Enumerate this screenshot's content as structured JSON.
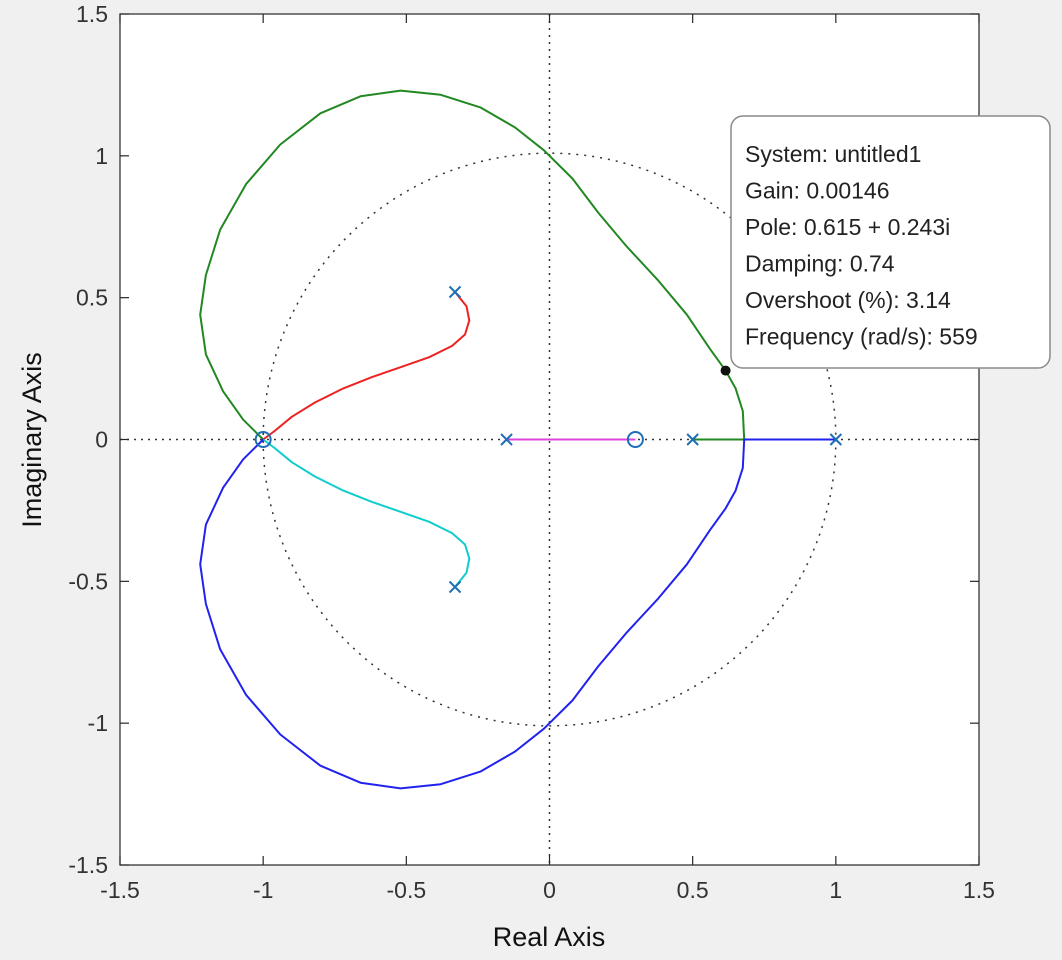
{
  "chart_data": {
    "type": "line",
    "xlabel": "Real Axis",
    "ylabel": "Imaginary Axis",
    "xlim": [
      -1.5,
      1.5
    ],
    "ylim": [
      -1.5,
      1.5
    ],
    "xticks": [
      -1.5,
      -1,
      -0.5,
      0,
      0.5,
      1,
      1.5
    ],
    "xtick_labels": [
      "-1.5",
      "-1",
      "-0.5",
      "0",
      "0.5",
      "1",
      "1.5"
    ],
    "yticks": [
      1.5,
      1,
      0.5,
      0,
      -0.5,
      -1,
      -1.5
    ],
    "ytick_labels": [
      "1.5",
      "1",
      "0.5",
      "0",
      "-0.5",
      "-1",
      "-1.5"
    ],
    "unit_circle": true,
    "grid": false,
    "poles": [
      {
        "x": -0.33,
        "y": 0.52
      },
      {
        "x": -0.33,
        "y": -0.52
      },
      {
        "x": -0.15,
        "y": 0
      },
      {
        "x": 0.5,
        "y": 0
      },
      {
        "x": 1.0,
        "y": 0
      }
    ],
    "zeros": [
      {
        "x": -1.0,
        "y": 0
      },
      {
        "x": 0.3,
        "y": 0
      }
    ],
    "series": [
      {
        "color": "#ee2222",
        "points": [
          [
            -0.33,
            0.52
          ],
          [
            -0.29,
            0.47
          ],
          [
            -0.28,
            0.42
          ],
          [
            -0.295,
            0.37
          ],
          [
            -0.34,
            0.33
          ],
          [
            -0.42,
            0.29
          ],
          [
            -0.52,
            0.255
          ],
          [
            -0.62,
            0.22
          ],
          [
            -0.72,
            0.18
          ],
          [
            -0.82,
            0.13
          ],
          [
            -0.9,
            0.08
          ],
          [
            -0.96,
            0.03
          ],
          [
            -1.0,
            0
          ]
        ]
      },
      {
        "color": "#11cccc",
        "points": [
          [
            -0.33,
            -0.52
          ],
          [
            -0.29,
            -0.47
          ],
          [
            -0.28,
            -0.42
          ],
          [
            -0.295,
            -0.37
          ],
          [
            -0.34,
            -0.33
          ],
          [
            -0.42,
            -0.29
          ],
          [
            -0.52,
            -0.255
          ],
          [
            -0.62,
            -0.22
          ],
          [
            -0.72,
            -0.18
          ],
          [
            -0.82,
            -0.13
          ],
          [
            -0.9,
            -0.08
          ],
          [
            -0.96,
            -0.03
          ],
          [
            -1.0,
            0
          ]
        ]
      },
      {
        "color": "#dd44dd",
        "points": [
          [
            -0.15,
            0
          ],
          [
            0.3,
            0
          ]
        ]
      },
      {
        "color": "#228822",
        "points": [
          [
            0.5,
            0
          ],
          [
            0.68,
            0
          ],
          [
            0.675,
            0.1
          ],
          [
            0.65,
            0.18
          ],
          [
            0.615,
            0.243
          ],
          [
            0.56,
            0.32
          ],
          [
            0.48,
            0.44
          ],
          [
            0.38,
            0.56
          ],
          [
            0.27,
            0.68
          ],
          [
            0.17,
            0.8
          ],
          [
            0.08,
            0.92
          ],
          [
            -0.02,
            1.02
          ],
          [
            -0.12,
            1.1
          ],
          [
            -0.24,
            1.17
          ],
          [
            -0.38,
            1.215
          ],
          [
            -0.52,
            1.23
          ],
          [
            -0.66,
            1.21
          ],
          [
            -0.8,
            1.15
          ],
          [
            -0.94,
            1.04
          ],
          [
            -1.06,
            0.9
          ],
          [
            -1.15,
            0.74
          ],
          [
            -1.2,
            0.58
          ],
          [
            -1.22,
            0.44
          ],
          [
            -1.2,
            0.3
          ],
          [
            -1.14,
            0.17
          ],
          [
            -1.07,
            0.07
          ],
          [
            -1.0,
            0
          ]
        ]
      },
      {
        "color": "#2222ee",
        "points": [
          [
            1.0,
            0
          ],
          [
            0.68,
            0
          ],
          [
            0.675,
            -0.1
          ],
          [
            0.65,
            -0.18
          ],
          [
            0.615,
            -0.243
          ],
          [
            0.56,
            -0.32
          ],
          [
            0.48,
            -0.44
          ],
          [
            0.38,
            -0.56
          ],
          [
            0.27,
            -0.68
          ],
          [
            0.17,
            -0.8
          ],
          [
            0.08,
            -0.92
          ],
          [
            -0.02,
            -1.02
          ],
          [
            -0.12,
            -1.1
          ],
          [
            -0.24,
            -1.17
          ],
          [
            -0.38,
            -1.215
          ],
          [
            -0.52,
            -1.23
          ],
          [
            -0.66,
            -1.21
          ],
          [
            -0.8,
            -1.15
          ],
          [
            -0.94,
            -1.04
          ],
          [
            -1.06,
            -0.9
          ],
          [
            -1.15,
            -0.74
          ],
          [
            -1.2,
            -0.58
          ],
          [
            -1.22,
            -0.44
          ],
          [
            -1.2,
            -0.3
          ],
          [
            -1.14,
            -0.17
          ],
          [
            -1.07,
            -0.07
          ],
          [
            -1.0,
            0
          ]
        ]
      }
    ],
    "datatip": {
      "point": {
        "x": 0.615,
        "y": 0.243
      },
      "lines": [
        "System: untitled1",
        "Gain: 0.00146",
        "Pole: 0.615 + 0.243i",
        "Damping: 0.74",
        "Overshoot (%): 3.14",
        "Frequency (rad/s): 559"
      ]
    },
    "colors": {
      "marker": "#1f6fb8",
      "background": "#f0f0f0",
      "plot_bg": "#ffffff"
    }
  }
}
